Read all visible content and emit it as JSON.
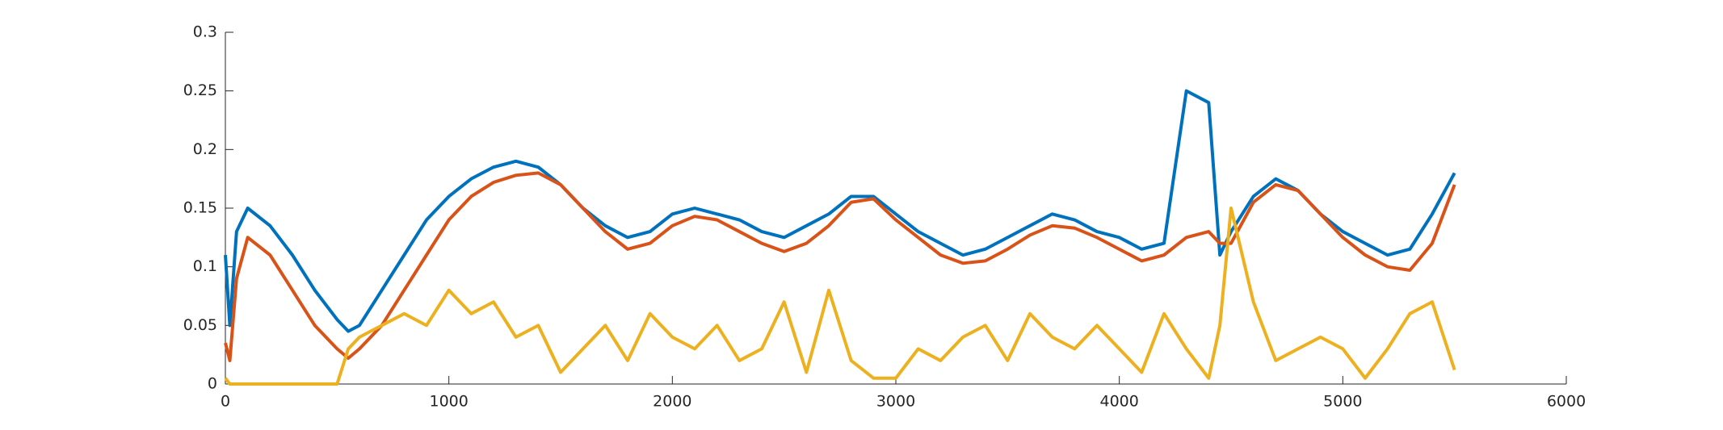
{
  "chart_data": {
    "type": "line",
    "x": [
      0,
      20,
      50,
      100,
      200,
      300,
      400,
      500,
      550,
      600,
      700,
      800,
      900,
      1000,
      1100,
      1200,
      1300,
      1400,
      1500,
      1600,
      1700,
      1800,
      1900,
      2000,
      2100,
      2200,
      2300,
      2400,
      2500,
      2600,
      2700,
      2800,
      2900,
      3000,
      3100,
      3200,
      3300,
      3400,
      3500,
      3600,
      3700,
      3800,
      3900,
      4000,
      4100,
      4200,
      4300,
      4400,
      4450,
      4500,
      4600,
      4700,
      4800,
      4900,
      5000,
      5100,
      5200,
      5300,
      5400,
      5500
    ],
    "series": [
      {
        "color": "#0072bd",
        "values": [
          0.11,
          0.05,
          0.13,
          0.15,
          0.135,
          0.11,
          0.08,
          0.055,
          0.045,
          0.05,
          0.08,
          0.11,
          0.14,
          0.16,
          0.175,
          0.185,
          0.19,
          0.185,
          0.17,
          0.15,
          0.135,
          0.125,
          0.13,
          0.145,
          0.15,
          0.145,
          0.14,
          0.13,
          0.125,
          0.135,
          0.145,
          0.16,
          0.16,
          0.145,
          0.13,
          0.12,
          0.11,
          0.115,
          0.125,
          0.135,
          0.145,
          0.14,
          0.13,
          0.125,
          0.115,
          0.12,
          0.25,
          0.24,
          0.11,
          0.13,
          0.16,
          0.175,
          0.165,
          0.145,
          0.13,
          0.12,
          0.11,
          0.115,
          0.145,
          0.18
        ]
      },
      {
        "color": "#d95319",
        "values": [
          0.035,
          0.02,
          0.09,
          0.125,
          0.11,
          0.08,
          0.05,
          0.03,
          0.022,
          0.03,
          0.05,
          0.08,
          0.11,
          0.14,
          0.16,
          0.172,
          0.178,
          0.18,
          0.17,
          0.15,
          0.13,
          0.115,
          0.12,
          0.135,
          0.143,
          0.14,
          0.13,
          0.12,
          0.113,
          0.12,
          0.135,
          0.155,
          0.158,
          0.14,
          0.125,
          0.11,
          0.103,
          0.105,
          0.115,
          0.127,
          0.135,
          0.133,
          0.125,
          0.115,
          0.105,
          0.11,
          0.125,
          0.13,
          0.12,
          0.12,
          0.155,
          0.17,
          0.165,
          0.145,
          0.125,
          0.11,
          0.1,
          0.097,
          0.12,
          0.17
        ]
      },
      {
        "color": "#edb120",
        "values": [
          0.005,
          0,
          0,
          0,
          0,
          0,
          0,
          0,
          0.03,
          0.04,
          0.05,
          0.06,
          0.05,
          0.08,
          0.06,
          0.07,
          0.04,
          0.05,
          0.01,
          0.03,
          0.05,
          0.02,
          0.06,
          0.04,
          0.03,
          0.05,
          0.02,
          0.03,
          0.07,
          0.01,
          0.08,
          0.02,
          0.005,
          0.005,
          0.03,
          0.02,
          0.04,
          0.05,
          0.02,
          0.06,
          0.04,
          0.03,
          0.05,
          0.03,
          0.01,
          0.06,
          0.03,
          0.005,
          0.05,
          0.15,
          0.07,
          0.02,
          0.03,
          0.04,
          0.03,
          0.005,
          0.03,
          0.06,
          0.07,
          0.012
        ]
      }
    ],
    "xlim": [
      0,
      6000
    ],
    "xticks": [
      0,
      1000,
      2000,
      3000,
      4000,
      5000,
      6000
    ],
    "ylim": [
      0,
      0.3
    ],
    "yticks": [
      0,
      0.05,
      0.1,
      0.15,
      0.2,
      0.25,
      0.3
    ]
  }
}
